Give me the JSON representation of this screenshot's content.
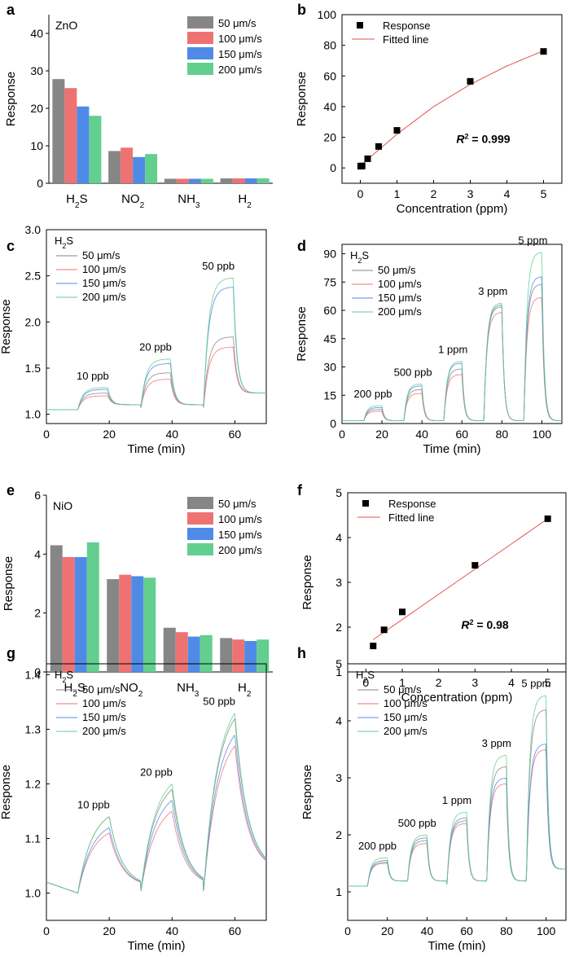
{
  "colors": {
    "s50": "#868686",
    "s100": "#ef7272",
    "s150": "#4f8be6",
    "s200": "#63cf8f",
    "fit": "#e05050",
    "marker": "#000000"
  },
  "chart_data": [
    {
      "panel": "a",
      "type": "bar",
      "material": "ZnO",
      "title": "",
      "ylabel": "Response",
      "ylim": [
        0,
        45
      ],
      "yticks": [
        "0",
        "10",
        "20",
        "30",
        "40"
      ],
      "categories": [
        "H2S",
        "NO2",
        "NH3",
        "H2"
      ],
      "category_base": [
        "H",
        "NO",
        "NH",
        "H"
      ],
      "category_sub": [
        "2",
        "2",
        "3",
        "2"
      ],
      "category_tail": [
        "S",
        "",
        "",
        ""
      ],
      "series": [
        {
          "name": "50 μm/s",
          "values": [
            27.8,
            8.6,
            1.2,
            1.3
          ]
        },
        {
          "name": "100 μm/s",
          "values": [
            25.4,
            9.5,
            1.2,
            1.3
          ]
        },
        {
          "name": "150 μm/s",
          "values": [
            20.5,
            7.0,
            1.2,
            1.3
          ]
        },
        {
          "name": "200 μm/s",
          "values": [
            18.0,
            7.8,
            1.2,
            1.3
          ]
        }
      ]
    },
    {
      "panel": "b",
      "type": "scatter",
      "xlabel": "Concentration (ppm)",
      "ylabel": "Response",
      "xlim": [
        -0.5,
        5.5
      ],
      "ylim": [
        -10,
        100
      ],
      "xticks": [
        "0",
        "1",
        "2",
        "3",
        "4",
        "5"
      ],
      "yticks": [
        "0",
        "20",
        "40",
        "60",
        "80",
        "100"
      ],
      "legend": [
        "Response",
        "Fitted line"
      ],
      "annotation": "R",
      "annotation_sup": "2",
      "annotation_tail": " = 0.999",
      "x": [
        0.01,
        0.02,
        0.05,
        0.2,
        0.5,
        1,
        3,
        5
      ],
      "y": [
        1.1,
        1.2,
        1.3,
        6.0,
        14.0,
        24.5,
        56.5,
        76.0
      ],
      "fit_x": [
        0,
        1,
        2,
        3,
        4,
        5
      ],
      "fit_y": [
        1.5,
        22.0,
        40.0,
        54.5,
        66.5,
        76.5
      ]
    },
    {
      "panel": "c",
      "type": "line",
      "xlabel": "Time (min)",
      "ylabel": "Response",
      "gas_label": "H2S",
      "xlim": [
        0,
        70
      ],
      "ylim": [
        0.9,
        3.0
      ],
      "xticks": [
        "0",
        "20",
        "40",
        "60"
      ],
      "yticks": [
        "1.0",
        "1.5",
        "2.0",
        "2.5",
        "3.0"
      ],
      "legend": [
        "50 μm/s",
        "100 μm/s",
        "150 μm/s",
        "200 μm/s"
      ],
      "pulses": [
        {
          "on": 10,
          "off": 19.5,
          "label": "10 ppb",
          "peaks": [
            1.23,
            1.2,
            1.27,
            1.29
          ]
        },
        {
          "on": 30,
          "off": 39.5,
          "label": "20 ppb",
          "peaks": [
            1.45,
            1.38,
            1.55,
            1.6
          ]
        },
        {
          "on": 50,
          "off": 59.5,
          "label": "50 ppb",
          "peaks": [
            1.84,
            1.73,
            2.38,
            2.48
          ]
        }
      ],
      "baseline": 1.05,
      "tail": 1.23
    },
    {
      "panel": "d",
      "type": "line",
      "xlabel": "Time (min)",
      "ylabel": "Response",
      "gas_label": "H2S",
      "xlim": [
        0,
        110
      ],
      "ylim": [
        0,
        95
      ],
      "xticks": [
        "0",
        "20",
        "40",
        "60",
        "80",
        "100"
      ],
      "yticks": [
        "0",
        "15",
        "30",
        "45",
        "60",
        "75",
        "90"
      ],
      "legend": [
        "50 μm/s",
        "100 μm/s",
        "150 μm/s",
        "200 μm/s"
      ],
      "pulses": [
        {
          "on": 11,
          "off": 20,
          "label": "200 ppb",
          "peaks": [
            7.5,
            6.5,
            8.5,
            9.5
          ]
        },
        {
          "on": 31,
          "off": 40,
          "label": "500 ppb",
          "peaks": [
            18,
            16,
            20,
            21
          ]
        },
        {
          "on": 51,
          "off": 60,
          "label": "1 ppm",
          "peaks": [
            29,
            26,
            32,
            33
          ]
        },
        {
          "on": 71,
          "off": 80,
          "label": "3 ppm",
          "peaks": [
            63,
            59,
            62,
            64
          ]
        },
        {
          "on": 91,
          "off": 100,
          "label": "5 ppm",
          "peaks": [
            74,
            67,
            78,
            91
          ]
        }
      ],
      "baseline": 1.5,
      "tail": 1.5
    },
    {
      "panel": "e",
      "type": "bar",
      "material": "NiO",
      "title": "",
      "ylabel": "Response",
      "ylim": [
        0,
        6
      ],
      "yticks": [
        "0",
        "2",
        "4",
        "6"
      ],
      "categories": [
        "H2S",
        "NO2",
        "NH3",
        "H2"
      ],
      "category_base": [
        "H",
        "NO",
        "NH",
        "H"
      ],
      "category_sub": [
        "2",
        "2",
        "3",
        "2"
      ],
      "category_tail": [
        "S",
        "",
        "",
        ""
      ],
      "series": [
        {
          "name": "50 μm/s",
          "values": [
            4.3,
            3.15,
            1.5,
            1.15
          ]
        },
        {
          "name": "100 μm/s",
          "values": [
            3.9,
            3.3,
            1.35,
            1.1
          ]
        },
        {
          "name": "150 μm/s",
          "values": [
            3.9,
            3.25,
            1.2,
            1.05
          ]
        },
        {
          "name": "200 μm/s",
          "values": [
            4.4,
            3.2,
            1.25,
            1.1
          ]
        }
      ]
    },
    {
      "panel": "f",
      "type": "scatter",
      "xlabel": "Concentration (ppm)",
      "ylabel": "Response",
      "xlim": [
        -0.5,
        5.5
      ],
      "ylim": [
        1,
        5
      ],
      "xticks": [
        "0",
        "1",
        "2",
        "3",
        "4",
        "5"
      ],
      "yticks": [
        "1",
        "2",
        "3",
        "4",
        "5"
      ],
      "legend": [
        "Response",
        "Fitted line"
      ],
      "annotation": "R",
      "annotation_sup": "2",
      "annotation_tail": " = 0.98",
      "x": [
        0.2,
        0.5,
        1,
        3,
        5
      ],
      "y": [
        1.58,
        1.94,
        2.34,
        3.38,
        4.42
      ],
      "fit_x": [
        0.2,
        5
      ],
      "fit_y": [
        1.72,
        4.42
      ]
    },
    {
      "panel": "g",
      "type": "line",
      "xlabel": "Time (min)",
      "ylabel": "Response",
      "gas_label": "H2S",
      "xlim": [
        0,
        70
      ],
      "ylim": [
        0.95,
        1.42
      ],
      "xticks": [
        "0",
        "20",
        "40",
        "60"
      ],
      "yticks": [
        "1.0",
        "1.1",
        "1.2",
        "1.3",
        "1.4"
      ],
      "legend": [
        "50 μm/s",
        "100 μm/s",
        "150 μm/s",
        "200 μm/s"
      ],
      "pulses": [
        {
          "on": 10,
          "off": 20,
          "label": "10 ppb",
          "peaks": [
            1.14,
            1.11,
            1.12,
            1.14
          ]
        },
        {
          "on": 30,
          "off": 40,
          "label": "20 ppb",
          "peaks": [
            1.19,
            1.15,
            1.17,
            1.2
          ]
        },
        {
          "on": 50,
          "off": 60,
          "label": "50 ppb",
          "peaks": [
            1.32,
            1.27,
            1.29,
            1.33
          ]
        }
      ],
      "baseline": 1.0,
      "tail": 1.04
    },
    {
      "panel": "h",
      "type": "line",
      "xlabel": "Time (min)",
      "ylabel": "Response",
      "gas_label": "H2S",
      "xlim": [
        0,
        110
      ],
      "ylim": [
        0.5,
        5
      ],
      "xticks": [
        "0",
        "20",
        "40",
        "60",
        "80",
        "100"
      ],
      "yticks": [
        "1",
        "2",
        "3",
        "4",
        "5"
      ],
      "legend": [
        "50 μm/s",
        "100 μm/s",
        "150 μm/s",
        "200 μm/s"
      ],
      "pulses": [
        {
          "on": 10,
          "off": 20,
          "label": "200 ppb",
          "peaks": [
            1.55,
            1.5,
            1.52,
            1.6
          ]
        },
        {
          "on": 30,
          "off": 40,
          "label": "500 ppb",
          "peaks": [
            1.95,
            1.85,
            1.9,
            2.0
          ]
        },
        {
          "on": 50,
          "off": 60,
          "label": "1 ppm",
          "peaks": [
            2.3,
            2.2,
            2.25,
            2.4
          ]
        },
        {
          "on": 70,
          "off": 80,
          "label": "3 ppm",
          "peaks": [
            3.2,
            2.9,
            3.0,
            3.4
          ]
        },
        {
          "on": 90,
          "off": 100,
          "label": "5 ppm",
          "peaks": [
            4.2,
            3.5,
            3.6,
            4.45
          ]
        }
      ],
      "baseline": 1.1,
      "tail": 1.4
    }
  ]
}
